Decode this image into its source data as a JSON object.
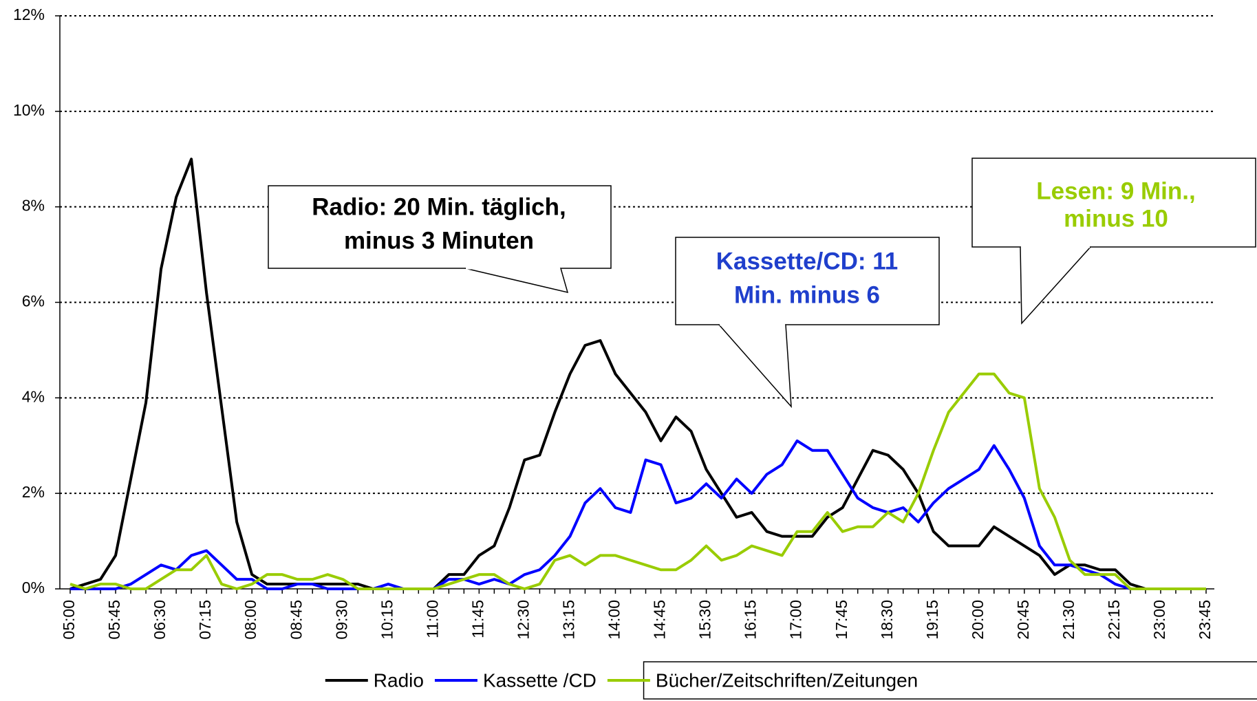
{
  "chart_data": {
    "type": "line",
    "categories": [
      "05:00",
      null,
      null,
      "05:45",
      null,
      null,
      "06:30",
      null,
      null,
      "07:15",
      null,
      null,
      "08:00",
      null,
      null,
      "08:45",
      null,
      null,
      "09:30",
      null,
      null,
      "10:15",
      null,
      null,
      "11:00",
      null,
      null,
      "11:45",
      null,
      null,
      "12:30",
      null,
      null,
      "13:15",
      null,
      null,
      "14:00",
      null,
      null,
      "14:45",
      null,
      null,
      "15:30",
      null,
      null,
      "16:15",
      null,
      null,
      "17:00",
      null,
      null,
      "17:45",
      null,
      null,
      "18:30",
      null,
      null,
      "19:15",
      null,
      null,
      "20:00",
      null,
      null,
      "20:45",
      null,
      null,
      "21:30",
      null,
      null,
      "22:15",
      null,
      null,
      "23:00",
      null,
      null,
      "23:45"
    ],
    "series": [
      {
        "name": "Radio",
        "color": "#000000",
        "values": [
          0.0,
          0.1,
          0.2,
          0.7,
          2.3,
          3.9,
          6.7,
          8.2,
          9.0,
          6.2,
          3.8,
          1.4,
          0.3,
          0.1,
          0.1,
          0.1,
          0.1,
          0.1,
          0.1,
          0.1,
          0,
          0,
          0,
          0,
          0,
          0.3,
          0.3,
          0.7,
          0.9,
          1.7,
          2.7,
          2.8,
          3.7,
          4.5,
          5.1,
          5.2,
          4.5,
          4.1,
          3.7,
          3.1,
          3.6,
          3.3,
          2.5,
          2.0,
          1.5,
          1.6,
          1.2,
          1.1,
          1.1,
          1.1,
          1.5,
          1.7,
          2.3,
          2.9,
          2.8,
          2.5,
          2.0,
          1.2,
          0.9,
          0.9,
          0.9,
          1.3,
          1.1,
          0.9,
          0.7,
          0.3,
          0.5,
          0.5,
          0.4,
          0.4,
          0.1,
          0,
          0,
          0,
          0,
          0
        ]
      },
      {
        "name": "Kassette /CD",
        "color": "#0000ff",
        "values": [
          0,
          0,
          0,
          0,
          0.1,
          0.3,
          0.5,
          0.4,
          0.7,
          0.8,
          0.5,
          0.2,
          0.2,
          0,
          0,
          0.1,
          0.1,
          0,
          0,
          0,
          0,
          0.1,
          0,
          0,
          0,
          0.2,
          0.2,
          0.1,
          0.2,
          0.1,
          0.3,
          0.4,
          0.7,
          1.1,
          1.8,
          2.1,
          1.7,
          1.6,
          2.7,
          2.6,
          1.8,
          1.9,
          2.2,
          1.9,
          2.3,
          2.0,
          2.4,
          2.6,
          3.1,
          2.9,
          2.9,
          2.4,
          1.9,
          1.7,
          1.6,
          1.7,
          1.4,
          1.8,
          2.1,
          2.3,
          2.5,
          3.0,
          2.5,
          1.9,
          0.9,
          0.5,
          0.5,
          0.4,
          0.3,
          0.1,
          0,
          0,
          0,
          0,
          0,
          0
        ]
      },
      {
        "name": "Bücher/Zeitschriften/Zeitungen",
        "color": "#99cc00",
        "values": [
          0.1,
          0,
          0.1,
          0.1,
          0,
          0,
          0.2,
          0.4,
          0.4,
          0.7,
          0.1,
          0,
          0.1,
          0.3,
          0.3,
          0.2,
          0.2,
          0.3,
          0.2,
          0,
          0,
          0,
          0,
          0,
          0,
          0.1,
          0.2,
          0.3,
          0.3,
          0.1,
          0,
          0.1,
          0.6,
          0.7,
          0.5,
          0.7,
          0.7,
          0.6,
          0.5,
          0.4,
          0.4,
          0.6,
          0.9,
          0.6,
          0.7,
          0.9,
          0.8,
          0.7,
          1.2,
          1.2,
          1.6,
          1.2,
          1.3,
          1.3,
          1.6,
          1.4,
          2.0,
          2.9,
          3.7,
          4.1,
          4.5,
          4.5,
          4.1,
          4.0,
          2.1,
          1.5,
          0.6,
          0.3,
          0.3,
          0.3,
          0,
          0,
          0,
          0,
          0,
          0
        ]
      }
    ],
    "ylim": [
      0,
      12
    ],
    "yticks": [
      {
        "value": 0,
        "label": "0%"
      },
      {
        "value": 2,
        "label": "2%"
      },
      {
        "value": 4,
        "label": "4%"
      },
      {
        "value": 6,
        "label": "6%"
      },
      {
        "value": 8,
        "label": "8%"
      },
      {
        "value": 10,
        "label": "10%"
      },
      {
        "value": 12,
        "label": "12%"
      }
    ],
    "grid": true,
    "legend": "bottom",
    "annotations": [
      {
        "lines": [
          "Radio: 20 Min. täglich,",
          "minus 3 Minuten"
        ],
        "color": "#000000"
      },
      {
        "lines": [
          "Kassette/CD: 11",
          "Min. minus 6"
        ],
        "color": "#1f3fcc"
      },
      {
        "lines": [
          "Lesen: 9 Min.,",
          "minus 10"
        ],
        "color": "#99cc00"
      }
    ]
  }
}
